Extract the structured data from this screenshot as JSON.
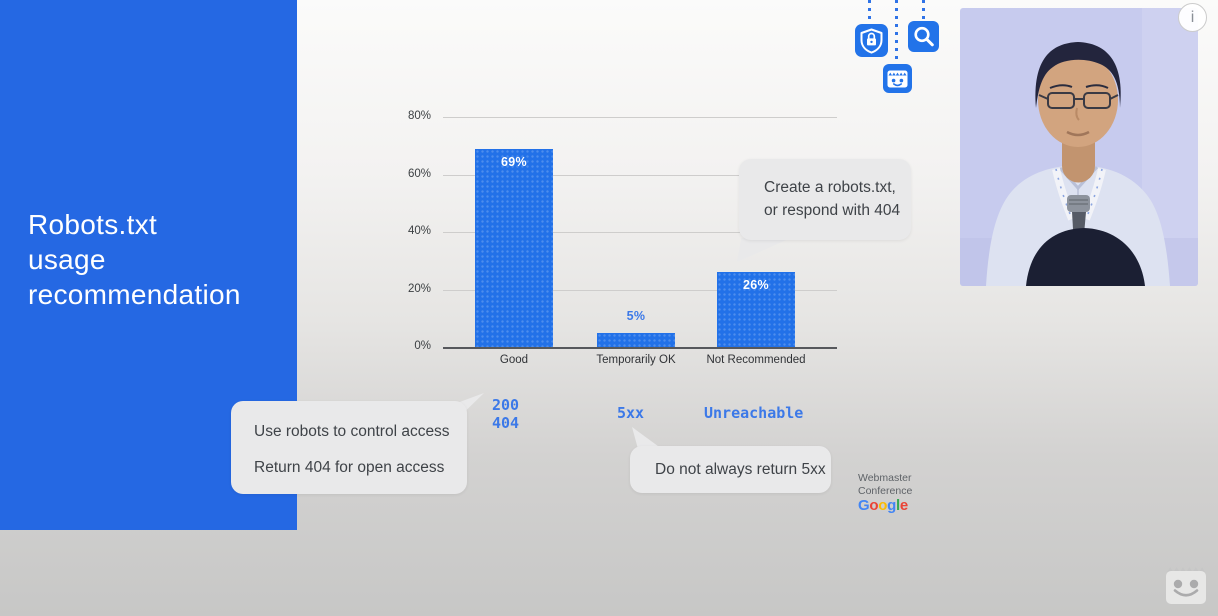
{
  "panel": {
    "title_lines": [
      "Robots.txt",
      "usage",
      "recommendation"
    ],
    "bg_color": "#2568e3",
    "text_color": "#ffffff"
  },
  "chart_data": {
    "type": "bar",
    "title": "Robots.txt usage recommendation",
    "categories": [
      "Good",
      "Temporarily OK",
      "Not Recommended"
    ],
    "values": [
      69,
      5,
      26
    ],
    "value_labels": [
      "69%",
      "5%",
      "26%"
    ],
    "yticks": [
      0,
      20,
      40,
      60,
      80
    ],
    "ytick_labels": [
      "0%",
      "20%",
      "40%",
      "60%",
      "80%"
    ],
    "ylim": [
      0,
      80
    ],
    "grid": true,
    "legend": false,
    "bar_color": "#2271e8",
    "inside_label_color": "#ffffff",
    "outside_label_color": "#3c79e8",
    "code_labels": [
      [
        "200",
        "404"
      ],
      [
        "5xx"
      ],
      [
        "Unreachable"
      ]
    ]
  },
  "callouts": {
    "create_robots": {
      "lines": [
        "Create a robots.txt,",
        "or respond with 404"
      ]
    },
    "use_robots": {
      "lines": [
        "Use robots to control access",
        "Return 404 for open access"
      ]
    },
    "five_xx": {
      "lines": [
        "Do not always return 5xx"
      ]
    }
  },
  "branding": {
    "conference_lines": [
      "Webmaster",
      "Conference"
    ],
    "google_letters": [
      {
        "ch": "G",
        "color": "#4285F4"
      },
      {
        "ch": "o",
        "color": "#EA4335"
      },
      {
        "ch": "o",
        "color": "#FBBC05"
      },
      {
        "ch": "g",
        "color": "#4285F4"
      },
      {
        "ch": "l",
        "color": "#34A853"
      },
      {
        "ch": "e",
        "color": "#EA4335"
      }
    ]
  },
  "icons": {
    "accent_color": "#2273e9",
    "top_row": [
      "shield-lock-icon",
      "robot-face-icon",
      "search-icon"
    ],
    "watermark": "robot-face-watermark"
  },
  "overlay": {
    "info_label": "i"
  }
}
